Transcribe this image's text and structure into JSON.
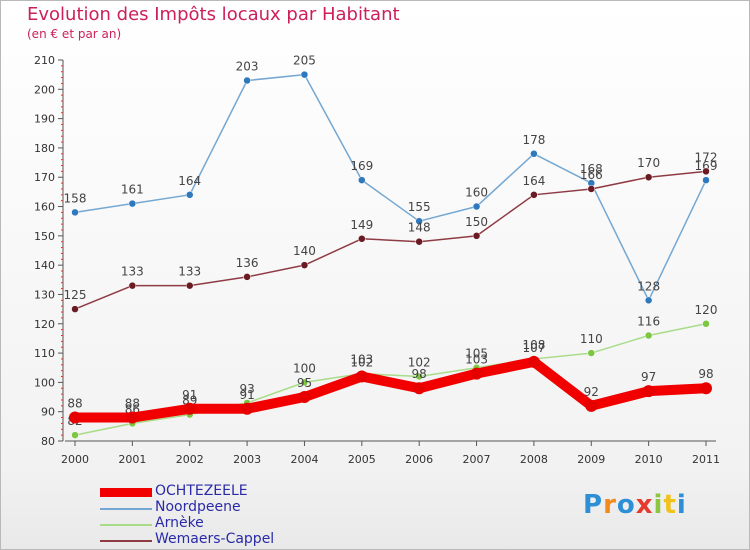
{
  "title": "Evolution des Impôts locaux par Habitant",
  "subtitle": "(en € et par an)",
  "logo": "Proxiti",
  "chart_data": {
    "type": "line",
    "title": "Evolution des Impôts locaux par Habitant",
    "subtitle": "(en € et par an)",
    "xlabel": "",
    "ylabel": "",
    "ylim": [
      80,
      210
    ],
    "yticks": [
      80,
      90,
      100,
      110,
      120,
      130,
      140,
      150,
      160,
      170,
      180,
      190,
      200,
      210
    ],
    "categories": [
      "2000",
      "2001",
      "2002",
      "2003",
      "2004",
      "2005",
      "2006",
      "2007",
      "2008",
      "2009",
      "2010",
      "2011"
    ],
    "grid": false,
    "legend_position": "bottom-left",
    "series": [
      {
        "name": "Noordpeene",
        "color": "#74a7d2",
        "marker": "#2e78bd",
        "values": [
          158,
          161,
          164,
          203,
          205,
          169,
          155,
          160,
          178,
          168,
          128,
          169
        ]
      },
      {
        "name": "Wemaers-Cappel",
        "color": "#8f3b44",
        "marker": "#6a1a22",
        "values": [
          125,
          133,
          133,
          136,
          140,
          149,
          148,
          150,
          164,
          166,
          170,
          172
        ]
      },
      {
        "name": "Arnèke",
        "color": "#a9dc89",
        "marker": "#7cc644",
        "values": [
          82,
          86,
          89,
          93,
          100,
          103,
          102,
          105,
          108,
          110,
          116,
          120
        ]
      },
      {
        "name": "OCHTEZEELE",
        "color": "#f20000",
        "marker": "#e60000",
        "values": [
          88,
          88,
          91,
          91,
          95,
          102,
          98,
          103,
          107,
          92,
          97,
          98
        ]
      }
    ],
    "legend": [
      "OCHTEZEELE",
      "Noordpeene",
      "Arnèke",
      "Wemaers-Cappel"
    ]
  }
}
